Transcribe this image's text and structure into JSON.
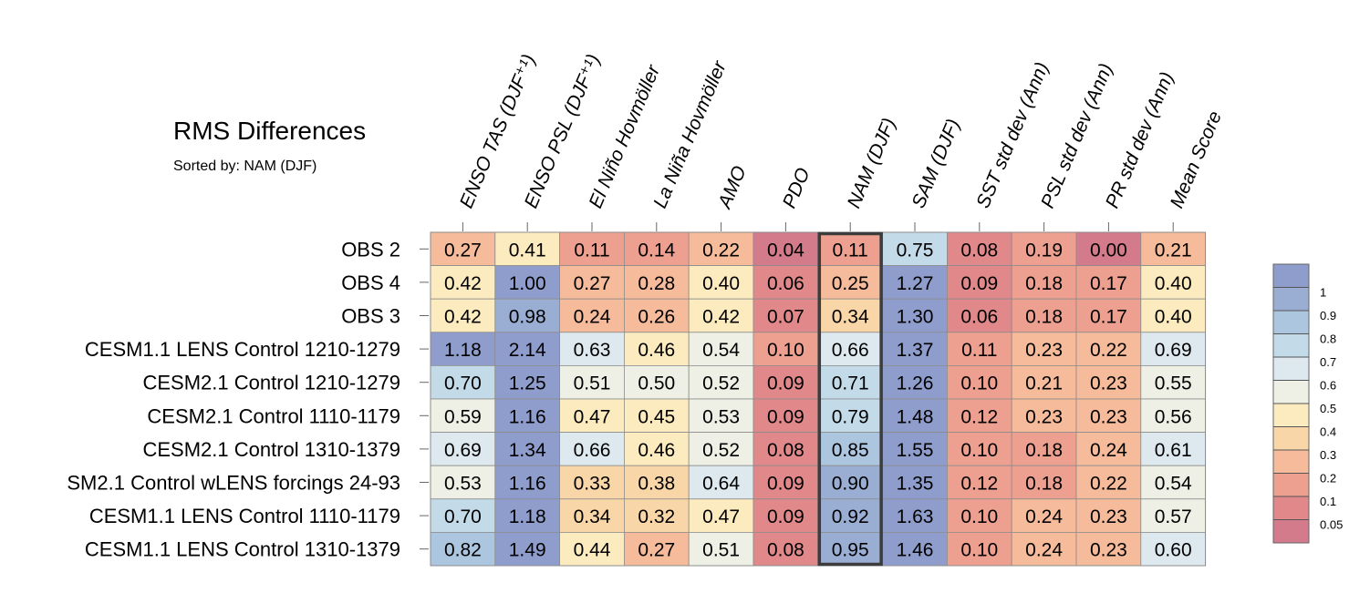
{
  "chart_data": {
    "type": "heatmap",
    "title": "RMS Differences",
    "subtitle": "Sorted by: NAM (DJF)",
    "columns": [
      "ENSO TAS (DJF⁺¹)",
      "ENSO PSL (DJF⁺¹)",
      "El Niño Hovmöller",
      "La Niña Hovmöller",
      "AMO",
      "PDO",
      "NAM (DJF)",
      "SAM (DJF)",
      "SST std dev (Ann)",
      "PSL std dev (Ann)",
      "PR std dev (Ann)",
      "Mean Score"
    ],
    "highlighted_column": "NAM (DJF)",
    "rows": [
      "OBS 2",
      "OBS 4",
      "OBS 3",
      "CESM1.1 LENS Control 1210-1279",
      "CESM2.1 Control 1210-1279",
      "CESM2.1 Control 1110-1179",
      "CESM2.1 Control 1310-1379",
      "SM2.1 Control wLENS forcings 24-93",
      "CESM1.1 LENS Control 1110-1179",
      "CESM1.1 LENS Control 1310-1379"
    ],
    "values": [
      [
        "0.27",
        "0.41",
        "0.11",
        "0.14",
        "0.22",
        "0.04",
        "0.11",
        "0.75",
        "0.08",
        "0.19",
        "0.00",
        "0.21"
      ],
      [
        "0.42",
        "1.00",
        "0.27",
        "0.28",
        "0.40",
        "0.06",
        "0.25",
        "1.27",
        "0.09",
        "0.18",
        "0.17",
        "0.40"
      ],
      [
        "0.42",
        "0.98",
        "0.24",
        "0.26",
        "0.42",
        "0.07",
        "0.34",
        "1.30",
        "0.06",
        "0.18",
        "0.17",
        "0.40"
      ],
      [
        "1.18",
        "2.14",
        "0.63",
        "0.46",
        "0.54",
        "0.10",
        "0.66",
        "1.37",
        "0.11",
        "0.23",
        "0.22",
        "0.69"
      ],
      [
        "0.70",
        "1.25",
        "0.51",
        "0.50",
        "0.52",
        "0.09",
        "0.71",
        "1.26",
        "0.10",
        "0.21",
        "0.23",
        "0.55"
      ],
      [
        "0.59",
        "1.16",
        "0.47",
        "0.45",
        "0.53",
        "0.09",
        "0.79",
        "1.48",
        "0.12",
        "0.23",
        "0.23",
        "0.56"
      ],
      [
        "0.69",
        "1.34",
        "0.66",
        "0.46",
        "0.52",
        "0.08",
        "0.85",
        "1.55",
        "0.10",
        "0.18",
        "0.24",
        "0.61"
      ],
      [
        "0.53",
        "1.16",
        "0.33",
        "0.38",
        "0.64",
        "0.09",
        "0.90",
        "1.35",
        "0.12",
        "0.18",
        "0.22",
        "0.54"
      ],
      [
        "0.70",
        "1.18",
        "0.34",
        "0.32",
        "0.47",
        "0.09",
        "0.92",
        "1.63",
        "0.10",
        "0.24",
        "0.23",
        "0.57"
      ],
      [
        "0.82",
        "1.49",
        "0.44",
        "0.27",
        "0.51",
        "0.08",
        "0.95",
        "1.46",
        "0.10",
        "0.24",
        "0.23",
        "0.60"
      ]
    ],
    "colorbar": {
      "levels": [
        "0.05",
        "0.1",
        "0.2",
        "0.3",
        "0.4",
        "0.5",
        "0.6",
        "0.7",
        "0.8",
        "0.9",
        "1"
      ],
      "colors": [
        "#d37a8b",
        "#e0888a",
        "#eea090",
        "#f5bb9a",
        "#f9d6a8",
        "#fbebbf",
        "#eef0e5",
        "#dde9ef",
        "#c3dbe8",
        "#adc6e0",
        "#9aaed4",
        "#8f9dcc"
      ]
    }
  }
}
